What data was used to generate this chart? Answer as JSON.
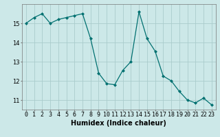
{
  "x": [
    0,
    1,
    2,
    3,
    4,
    5,
    6,
    7,
    8,
    9,
    10,
    11,
    12,
    13,
    14,
    15,
    16,
    17,
    18,
    19,
    20,
    21,
    22,
    23
  ],
  "y": [
    15.0,
    15.3,
    15.5,
    15.0,
    15.2,
    15.3,
    15.4,
    15.5,
    14.2,
    12.4,
    11.85,
    11.8,
    12.55,
    13.0,
    15.6,
    14.2,
    13.55,
    12.25,
    12.0,
    11.45,
    11.0,
    10.85,
    11.1,
    10.75
  ],
  "line_color": "#007070",
  "marker": "D",
  "marker_size": 2,
  "bg_color": "#cce8e8",
  "grid_color": "#aacccc",
  "xlabel": "Humidex (Indice chaleur)",
  "xlim": [
    -0.5,
    23.5
  ],
  "ylim": [
    10.5,
    16.0
  ],
  "yticks": [
    11,
    12,
    13,
    14,
    15
  ],
  "xticks": [
    0,
    1,
    2,
    3,
    4,
    5,
    6,
    7,
    8,
    9,
    10,
    11,
    12,
    13,
    14,
    15,
    16,
    17,
    18,
    19,
    20,
    21,
    22,
    23
  ],
  "xlabel_fontsize": 7,
  "tick_fontsize": 6
}
